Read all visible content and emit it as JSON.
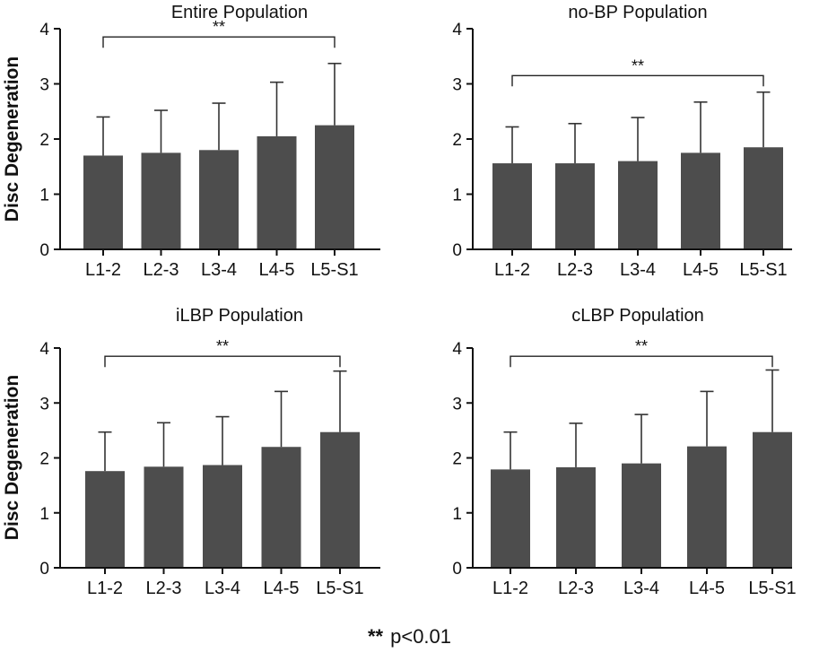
{
  "chart_data": [
    {
      "type": "bar",
      "title": "Entire Population",
      "ylabel": "Disc Degeneration",
      "xlabel": "",
      "categories": [
        "L1-2",
        "L2-3",
        "L3-4",
        "L4-5",
        "L5-S1"
      ],
      "values": [
        1.7,
        1.75,
        1.8,
        2.05,
        2.25
      ],
      "error_upper": [
        2.4,
        2.52,
        2.65,
        3.03,
        3.37
      ],
      "ylim": [
        0,
        4
      ],
      "yticks": [
        "0",
        "1",
        "2",
        "3",
        "4"
      ],
      "bracket": {
        "from": "L1-2",
        "to": "L5-S1",
        "label": "**",
        "y": 3.85
      }
    },
    {
      "type": "bar",
      "title": "no-BP Population",
      "ylabel": "",
      "xlabel": "",
      "categories": [
        "L1-2",
        "L2-3",
        "L3-4",
        "L4-5",
        "L5-S1"
      ],
      "values": [
        1.56,
        1.56,
        1.6,
        1.75,
        1.85
      ],
      "error_upper": [
        2.22,
        2.28,
        2.39,
        2.67,
        2.85
      ],
      "ylim": [
        0,
        4
      ],
      "yticks": [
        "0",
        "1",
        "2",
        "3",
        "4"
      ],
      "bracket": {
        "from": "L1-2",
        "to": "L5-S1",
        "label": "**",
        "y": 3.15
      }
    },
    {
      "type": "bar",
      "title": "iLBP Population",
      "ylabel": "Disc Degeneration",
      "xlabel": "",
      "categories": [
        "L1-2",
        "L2-3",
        "L3-4",
        "L4-5",
        "L5-S1"
      ],
      "values": [
        1.76,
        1.84,
        1.87,
        2.2,
        2.47
      ],
      "error_upper": [
        2.47,
        2.64,
        2.75,
        3.21,
        3.58
      ],
      "ylim": [
        0,
        4
      ],
      "yticks": [
        "0",
        "1",
        "2",
        "3",
        "4"
      ],
      "bracket": {
        "from": "L1-2",
        "to": "L5-S1",
        "label": "**",
        "y": 3.85
      }
    },
    {
      "type": "bar",
      "title": "cLBP Population",
      "ylabel": "",
      "xlabel": "",
      "categories": [
        "L1-2",
        "L2-3",
        "L3-4",
        "L4-5",
        "L5-S1"
      ],
      "values": [
        1.79,
        1.83,
        1.9,
        2.21,
        2.47
      ],
      "error_upper": [
        2.47,
        2.63,
        2.79,
        3.21,
        3.6
      ],
      "ylim": [
        0,
        4
      ],
      "yticks": [
        "0",
        "1",
        "2",
        "3",
        "4"
      ],
      "bracket": {
        "from": "L1-2",
        "to": "L5-S1",
        "label": "**",
        "y": 3.85
      }
    }
  ],
  "footnote": {
    "stars": "**",
    "text": "p<0.01"
  },
  "colors": {
    "bar": "#4d4d4d",
    "axis": "#111111"
  }
}
